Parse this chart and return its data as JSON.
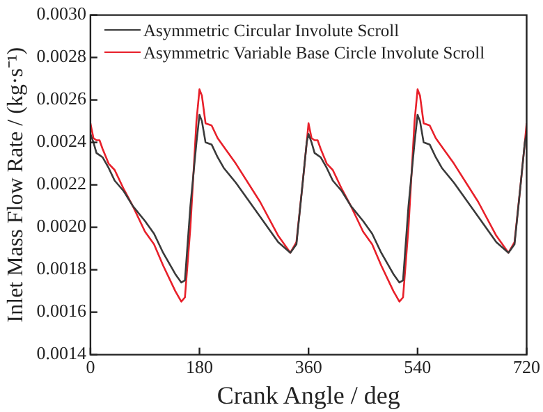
{
  "chart_data": {
    "type": "line",
    "xlabel": "Crank Angle / deg",
    "ylabel": "Inlet Mass Flow Rate / (kg·s⁻¹)",
    "x": [
      0,
      5,
      10,
      15,
      20,
      30,
      40,
      55,
      70,
      90,
      105,
      120,
      140,
      150,
      156,
      165,
      175,
      180,
      184,
      190,
      200,
      210,
      220,
      240,
      280,
      310,
      330,
      340,
      350,
      357,
      360,
      365,
      370,
      375,
      380,
      390,
      400,
      415,
      430,
      450,
      465,
      480,
      500,
      510,
      516,
      525,
      535,
      540,
      544,
      550,
      560,
      570,
      580,
      600,
      640,
      670,
      690,
      700,
      710,
      717,
      720
    ],
    "series": [
      {
        "name": "Asymmetric Circular Involute Scroll",
        "color": "#3a3a3a",
        "values": [
          0.00244,
          0.0024,
          0.00235,
          0.00234,
          0.00233,
          0.00228,
          0.00222,
          0.00217,
          0.0021,
          0.00203,
          0.00197,
          0.00188,
          0.00178,
          0.00174,
          0.00175,
          0.0021,
          0.0024,
          0.00253,
          0.0025,
          0.0024,
          0.00239,
          0.00233,
          0.00228,
          0.00221,
          0.00205,
          0.00193,
          0.00188,
          0.00192,
          0.0022,
          0.0024,
          0.00244,
          0.0024,
          0.00235,
          0.00234,
          0.00233,
          0.00228,
          0.00222,
          0.00217,
          0.0021,
          0.00203,
          0.00197,
          0.00188,
          0.00178,
          0.00174,
          0.00175,
          0.0021,
          0.0024,
          0.00253,
          0.0025,
          0.0024,
          0.00239,
          0.00233,
          0.00228,
          0.00221,
          0.00205,
          0.00193,
          0.00188,
          0.00192,
          0.0022,
          0.0024,
          0.00244
        ]
      },
      {
        "name": "Asymmetric Variable Base Circle Involute Scroll",
        "color": "#e8202a",
        "values": [
          0.00249,
          0.00242,
          0.00241,
          0.00241,
          0.00237,
          0.0023,
          0.00227,
          0.00218,
          0.0021,
          0.00198,
          0.00192,
          0.00182,
          0.0017,
          0.00165,
          0.00167,
          0.002,
          0.0025,
          0.00265,
          0.00262,
          0.00249,
          0.00248,
          0.00242,
          0.00238,
          0.0023,
          0.00212,
          0.00196,
          0.00188,
          0.00193,
          0.0022,
          0.0024,
          0.00249,
          0.00242,
          0.00241,
          0.00241,
          0.00237,
          0.0023,
          0.00227,
          0.00218,
          0.0021,
          0.00198,
          0.00192,
          0.00182,
          0.0017,
          0.00165,
          0.00167,
          0.002,
          0.0025,
          0.00265,
          0.00262,
          0.00249,
          0.00248,
          0.00242,
          0.00238,
          0.0023,
          0.00212,
          0.00196,
          0.00188,
          0.00193,
          0.0022,
          0.0024,
          0.00249
        ]
      }
    ],
    "xlim": [
      0,
      720
    ],
    "xticks": [
      0,
      180,
      360,
      540,
      720
    ],
    "ylim": [
      0.0014,
      0.003
    ],
    "yticks": [
      {
        "value": 0.0014,
        "label": "0.0014"
      },
      {
        "value": 0.0016,
        "label": "0.0016"
      },
      {
        "value": 0.0018,
        "label": "0.0018"
      },
      {
        "value": 0.002,
        "label": "0.0020"
      },
      {
        "value": 0.0022,
        "label": "0.0022"
      },
      {
        "value": 0.0024,
        "label": "0.0024"
      },
      {
        "value": 0.0026,
        "label": "0.0026"
      },
      {
        "value": 0.0028,
        "label": "0.0028"
      },
      {
        "value": 0.003,
        "label": "0.0030"
      }
    ],
    "legend": "top left",
    "grid": false
  }
}
